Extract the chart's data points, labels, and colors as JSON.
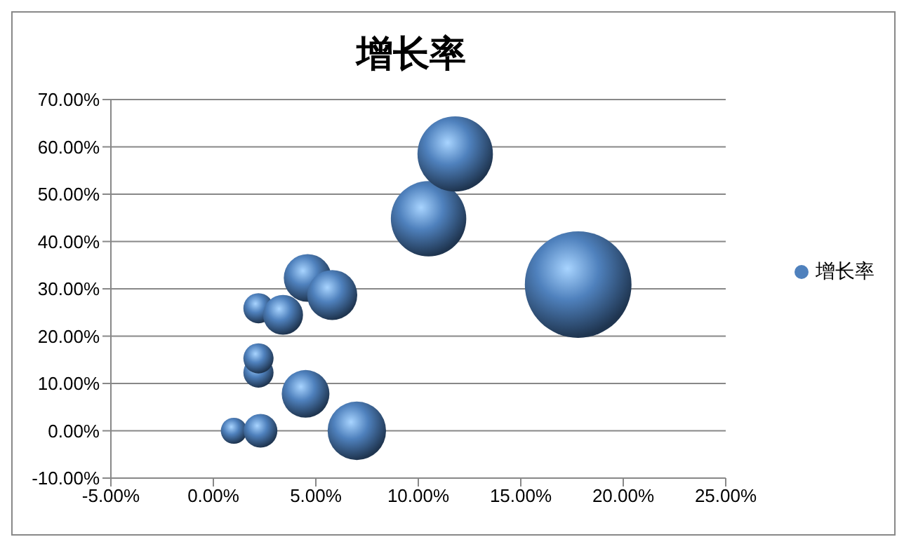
{
  "chart_data": {
    "type": "bubble",
    "title": "增长率",
    "x": [
      1.0,
      2.3,
      2.2,
      2.2,
      2.2,
      3.4,
      4.6,
      5.8,
      4.5,
      7.0,
      10.5,
      11.8,
      17.8
    ],
    "series": [
      {
        "name": "增长率",
        "color": "#4f81bd",
        "values": [
          0,
          0,
          12.3,
          15.3,
          25.9,
          24.5,
          32.3,
          28.7,
          7.8,
          0,
          44.8,
          58.5,
          30.9
        ],
        "sizes": [
          0.06,
          0.1,
          0.08,
          0.08,
          0.08,
          0.14,
          0.2,
          0.22,
          0.2,
          0.3,
          0.5,
          0.5,
          1
        ]
      }
    ],
    "xlim": [
      -5,
      25
    ],
    "xticks": [
      {
        "value": -5,
        "label": "-5.00%"
      },
      {
        "value": 0,
        "label": "0.00%"
      },
      {
        "value": 5,
        "label": "5.00%"
      },
      {
        "value": 10,
        "label": "10.00%"
      },
      {
        "value": 15,
        "label": "15.00%"
      },
      {
        "value": 20,
        "label": "20.00%"
      },
      {
        "value": 25,
        "label": "25.00%"
      }
    ],
    "ylim": [
      -10,
      70
    ],
    "yticks": [
      {
        "value": -10,
        "label": "-10.00%"
      },
      {
        "value": 0,
        "label": "0.00%"
      },
      {
        "value": 10,
        "label": "10.00%"
      },
      {
        "value": 20,
        "label": "20.00%"
      },
      {
        "value": 30,
        "label": "30.00%"
      },
      {
        "value": 40,
        "label": "40.00%"
      },
      {
        "value": 50,
        "label": "50.00%"
      },
      {
        "value": 60,
        "label": "60.00%"
      },
      {
        "value": 70,
        "label": "70.00%"
      }
    ],
    "grid": "y",
    "legend": "right"
  }
}
